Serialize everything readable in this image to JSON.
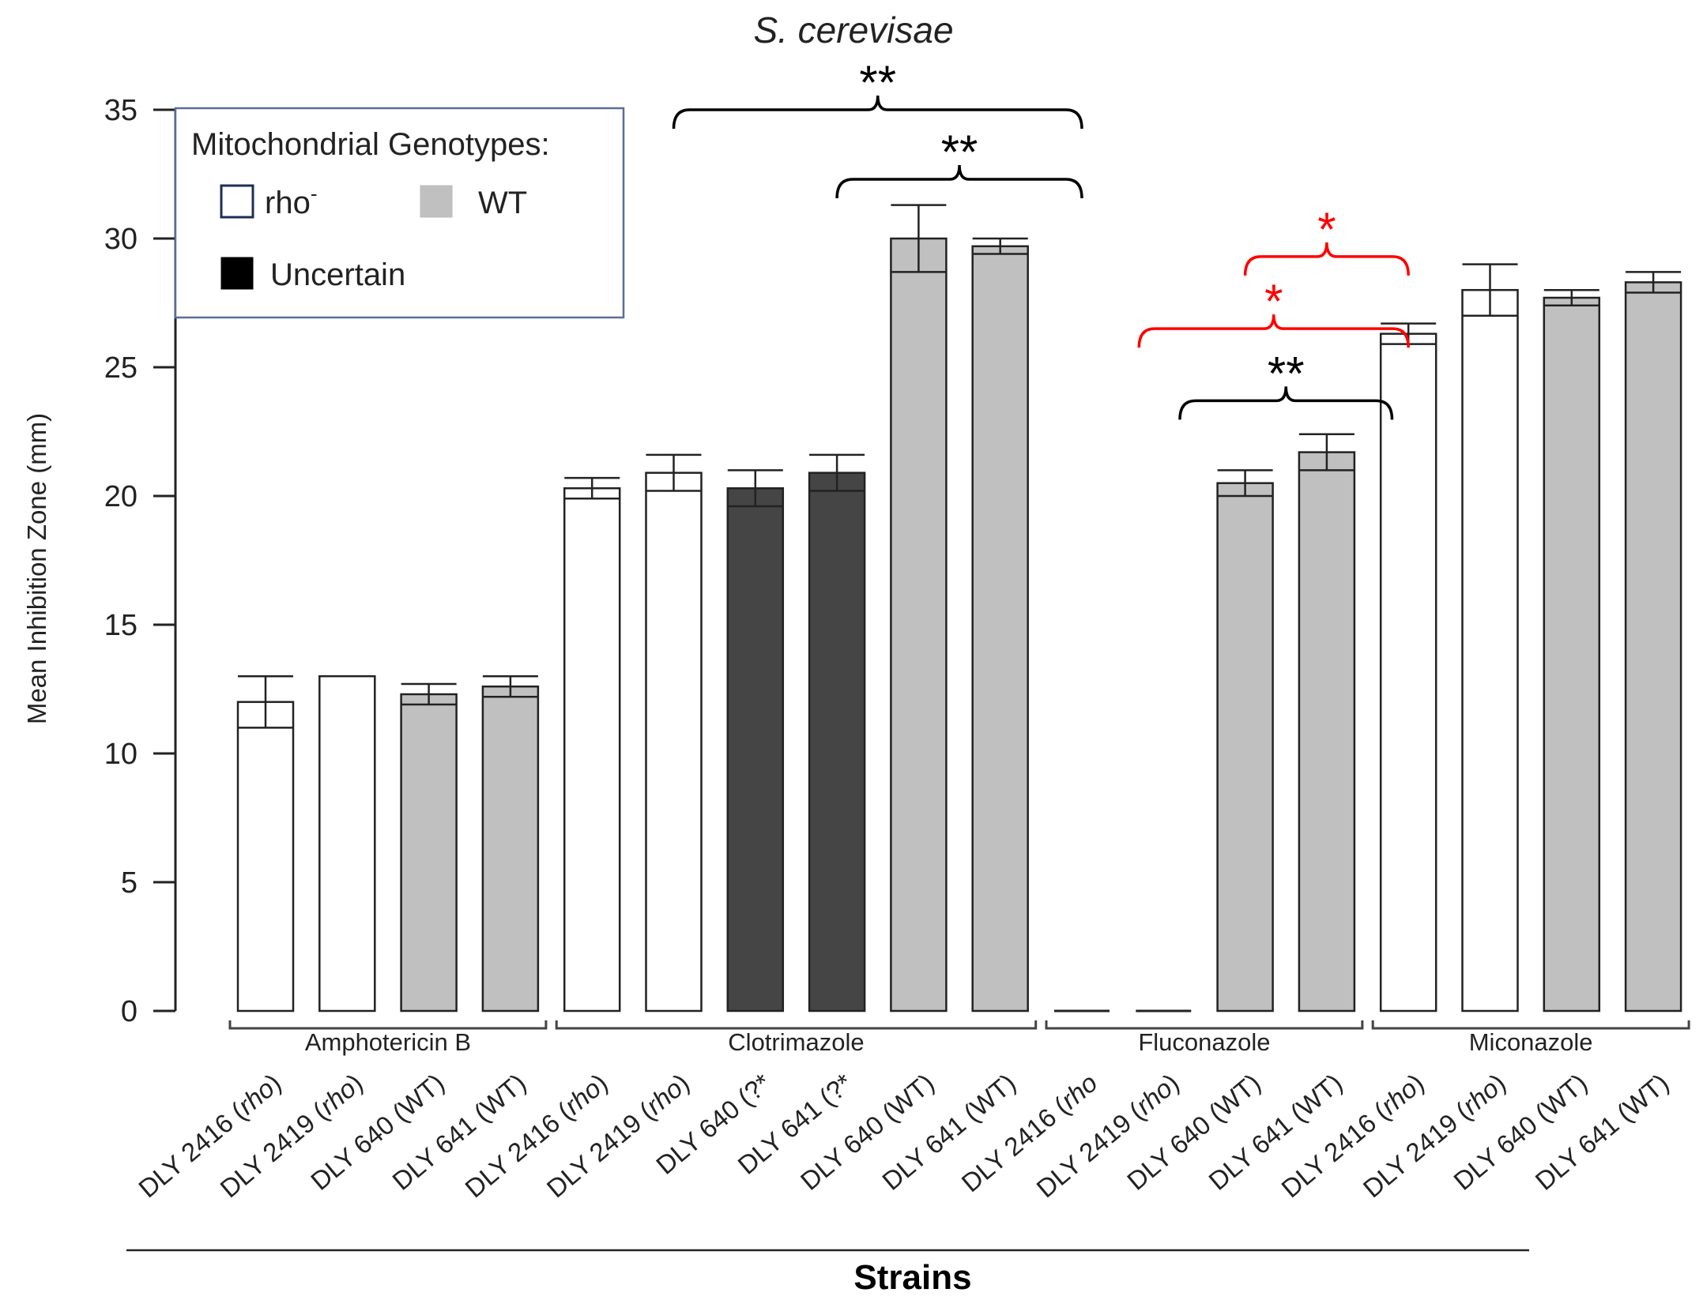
{
  "chart_data": {
    "type": "bar",
    "title": "S. cerevisae",
    "ylabel": "Mean Inhibition Zone (mm)",
    "xlabel": "Strains",
    "ylim": [
      0,
      35
    ],
    "yticks": [
      0,
      5,
      10,
      15,
      20,
      25,
      30,
      35
    ],
    "grid": false,
    "legend": {
      "title": "Mitochondrial Genotypes:",
      "placement": "top-left",
      "entries": [
        {
          "label": "rho",
          "sup": "-",
          "genotype": "rho"
        },
        {
          "label": "WT",
          "genotype": "WT"
        },
        {
          "label": "Uncertain",
          "genotype": "uncertain"
        }
      ]
    },
    "genotype_colors": {
      "rho": "#ffffff",
      "WT": "#c0c0c0",
      "uncertain": "#454545"
    },
    "groups": [
      {
        "name": "Amphotericin B",
        "bars": [
          {
            "label": "DLY 2416 (",
            "italic": "rho",
            "close": ")",
            "value": 12.0,
            "error": 1.0,
            "genotype": "rho"
          },
          {
            "label": "DLY 2419 (",
            "italic": "rho",
            "close": ")",
            "value": 13.0,
            "error": 0.0,
            "genotype": "rho"
          },
          {
            "label": "DLY 640 (WT)",
            "italic": "",
            "close": "",
            "value": 12.3,
            "error": 0.4,
            "genotype": "WT"
          },
          {
            "label": "DLY 641 (WT)",
            "italic": "",
            "close": "",
            "value": 12.6,
            "error": 0.4,
            "genotype": "WT"
          }
        ]
      },
      {
        "name": "Clotrimazole",
        "bars": [
          {
            "label": "DLY 2416 (",
            "italic": "rho",
            "close": ")",
            "value": 20.3,
            "error": 0.4,
            "genotype": "rho"
          },
          {
            "label": "DLY 2419 (",
            "italic": "rho",
            "close": ")",
            "value": 20.9,
            "error": 0.7,
            "genotype": "rho"
          },
          {
            "label": "DLY 640 (?*",
            "italic": "",
            "close": "",
            "value": 20.3,
            "error": 0.7,
            "genotype": "uncertain"
          },
          {
            "label": "DLY 641 (?*",
            "italic": "",
            "close": "",
            "value": 20.9,
            "error": 0.7,
            "genotype": "uncertain"
          },
          {
            "label": "DLY 640 (WT)",
            "italic": "",
            "close": "",
            "value": 30.0,
            "error": 1.3,
            "genotype": "WT"
          },
          {
            "label": "DLY 641 (WT)",
            "italic": "",
            "close": "",
            "value": 29.7,
            "error": 0.3,
            "genotype": "WT"
          }
        ]
      },
      {
        "name": "Fluconazole",
        "bars": [
          {
            "label": "DLY 2416 (",
            "italic": "rho",
            "close": "",
            "value": 0,
            "error": 0,
            "genotype": "rho"
          },
          {
            "label": "DLY 2419 (",
            "italic": "rho",
            "close": ")",
            "value": 0,
            "error": 0,
            "genotype": "rho"
          },
          {
            "label": "DLY 640 (WT)",
            "italic": "",
            "close": "",
            "value": 20.5,
            "error": 0.5,
            "genotype": "WT"
          },
          {
            "label": "DLY 641 (WT)",
            "italic": "",
            "close": "",
            "value": 21.7,
            "error": 0.7,
            "genotype": "WT"
          }
        ]
      },
      {
        "name": "Miconazole",
        "bars": [
          {
            "label": "DLY 2416 (",
            "italic": "rho",
            "close": ")",
            "value": 26.3,
            "error": 0.4,
            "genotype": "rho"
          },
          {
            "label": "DLY 2419 (",
            "italic": "rho",
            "close": ")",
            "value": 28.0,
            "error": 1.0,
            "genotype": "rho"
          },
          {
            "label": "DLY 640 (WT)",
            "italic": "",
            "close": "",
            "value": 27.7,
            "error": 0.3,
            "genotype": "WT"
          },
          {
            "label": "DLY 641 (WT)",
            "italic": "",
            "close": "",
            "value": 28.3,
            "error": 0.4,
            "genotype": "WT"
          }
        ]
      }
    ],
    "significance": [
      {
        "label": "**",
        "color": "#000000",
        "from_bar": 5,
        "to_bar": 10,
        "level": 35.0
      },
      {
        "label": "**",
        "color": "#000000",
        "from_bar": 7,
        "to_bar": 10,
        "level": 32.3
      },
      {
        "label": "*",
        "color": "#ff0000",
        "from_bar": 12,
        "to_bar": 14,
        "level": 29.3
      },
      {
        "label": "*",
        "color": "#ff0000",
        "from_bar": 10.7,
        "to_bar": 14,
        "level": 26.5
      },
      {
        "label": "**",
        "color": "#000000",
        "from_bar": 11.2,
        "to_bar": 13.8,
        "level": 23.7
      }
    ]
  }
}
